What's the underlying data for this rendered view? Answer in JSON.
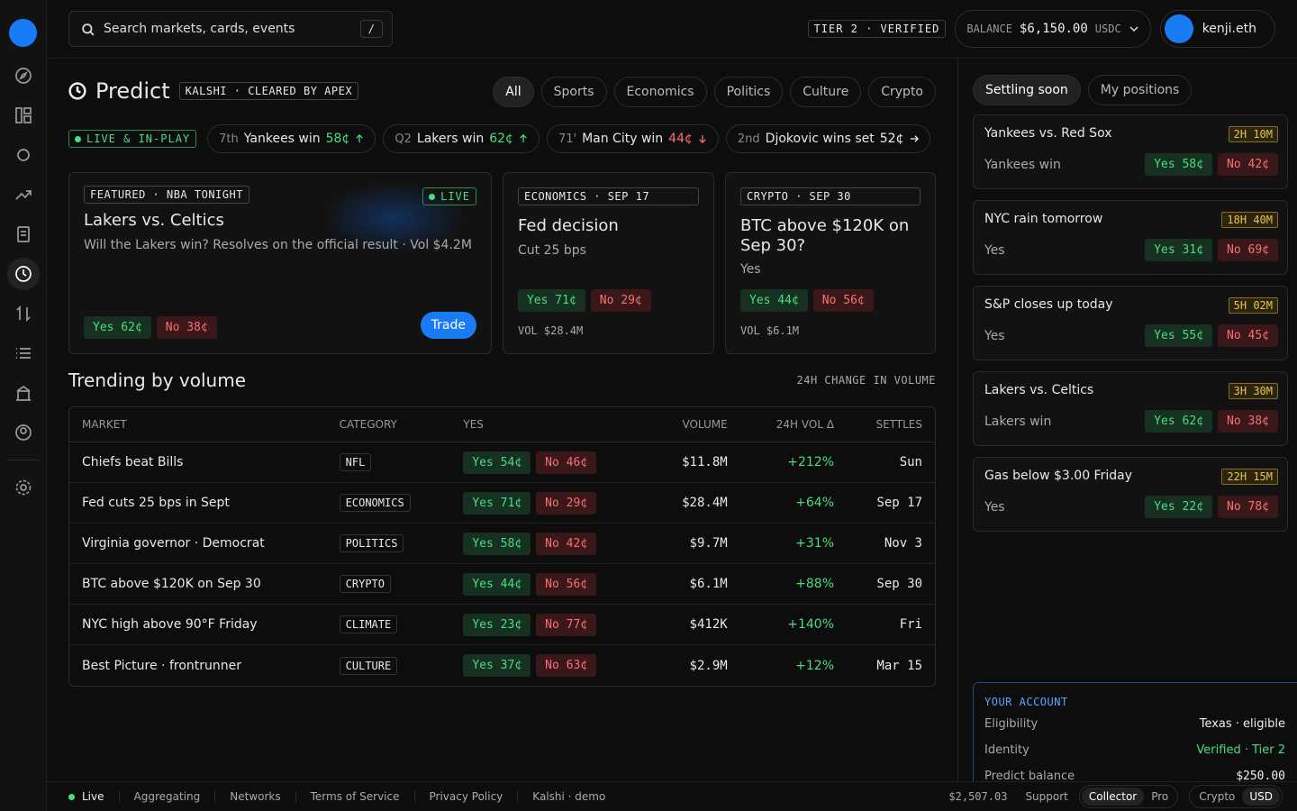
{
  "header": {
    "search_placeholder": "Search markets, cards, events",
    "shortcut": "/",
    "tier": "TIER 2 · VERIFIED",
    "balance_label": "BALANCE",
    "balance": "$6,150.00",
    "balance_unit": "USDC",
    "user": "kenji.eth"
  },
  "page": {
    "title": "Predict",
    "badge": "KALSHI · CLEARED BY APEX",
    "filters": [
      "All",
      "Sports",
      "Economics",
      "Politics",
      "Culture",
      "Crypto"
    ]
  },
  "ticker": {
    "live": "LIVE & IN-PLAY",
    "items": [
      {
        "time": "7th",
        "label": "Yankees win",
        "price": "58¢",
        "trend": "up"
      },
      {
        "time": "Q2",
        "label": "Lakers win",
        "price": "62¢",
        "trend": "up"
      },
      {
        "time": "71'",
        "label": "Man City win",
        "price": "44¢",
        "trend": "down"
      },
      {
        "time": "2nd",
        "label": "Djokovic wins set",
        "price": "52¢",
        "trend": "flat"
      }
    ]
  },
  "cards": [
    {
      "tag": "FEATURED · NBA TONIGHT",
      "live": "LIVE",
      "title": "Lakers vs. Celtics",
      "desc": "Will the Lakers win? Resolves on the official result · Vol $4.2M",
      "yes": "Yes 62¢",
      "no": "No 38¢",
      "button": "Trade"
    },
    {
      "tag": "ECONOMICS · SEP 17",
      "title": "Fed decision",
      "desc": "Cut 25 bps",
      "yes": "Yes 71¢",
      "no": "No 29¢",
      "vol": "VOL $28.4M"
    },
    {
      "tag": "CRYPTO · SEP 30",
      "title": "BTC above $120K on Sep 30?",
      "desc": "Yes",
      "yes": "Yes 44¢",
      "no": "No 56¢",
      "vol": "VOL $6.1M"
    }
  ],
  "trending": {
    "title": "Trending by volume",
    "note": "24H CHANGE IN VOLUME",
    "columns": [
      "MARKET",
      "CATEGORY",
      "YES",
      "VOLUME",
      "24H VOL Δ",
      "SETTLES"
    ],
    "rows": [
      [
        "Chiefs beat Bills",
        "NFL",
        "Yes 54¢",
        "No 46¢",
        "$11.8M",
        "+212%",
        "Sun"
      ],
      [
        "Fed cuts 25 bps in Sept",
        "ECONOMICS",
        "Yes 71¢",
        "No 29¢",
        "$28.4M",
        "+64%",
        "Sep 17"
      ],
      [
        "Virginia governor · Democrat",
        "POLITICS",
        "Yes 58¢",
        "No 42¢",
        "$9.7M",
        "+31%",
        "Nov 3"
      ],
      [
        "BTC above $120K on Sep 30",
        "CRYPTO",
        "Yes 44¢",
        "No 56¢",
        "$6.1M",
        "+88%",
        "Sep 30"
      ],
      [
        "NYC high above 90°F Friday",
        "CLIMATE",
        "Yes 23¢",
        "No 77¢",
        "$412K",
        "+140%",
        "Fri"
      ],
      [
        "Best Picture · frontrunner",
        "CULTURE",
        "Yes 37¢",
        "No 63¢",
        "$2.9M",
        "+12%",
        "Mar 15"
      ]
    ]
  },
  "side": {
    "tabs": [
      "Settling soon",
      "My positions"
    ],
    "items": [
      {
        "title": "Yankees vs. Red Sox",
        "time": "2H 10M",
        "outcome": "Yankees win",
        "yes": "Yes 58¢",
        "no": "No 42¢"
      },
      {
        "title": "NYC rain tomorrow",
        "time": "18H 40M",
        "outcome": "Yes",
        "yes": "Yes 31¢",
        "no": "No 69¢"
      },
      {
        "title": "S&P closes up today",
        "time": "5H 02M",
        "outcome": "Yes",
        "yes": "Yes 55¢",
        "no": "No 45¢"
      },
      {
        "title": "Lakers vs. Celtics",
        "time": "3H 30M",
        "outcome": "Lakers win",
        "yes": "Yes 62¢",
        "no": "No 38¢"
      },
      {
        "title": "Gas below $3.00 Friday",
        "time": "22H 15M",
        "outcome": "Yes",
        "yes": "Yes 22¢",
        "no": "No 78¢"
      }
    ],
    "account": {
      "title": "YOUR ACCOUNT",
      "rows": [
        [
          "Eligibility",
          "Texas · eligible"
        ],
        [
          "Identity",
          "Verified · Tier 2"
        ],
        [
          "Predict balance",
          "$250.00"
        ]
      ]
    }
  },
  "footer": {
    "status": "Live",
    "links": [
      "Aggregating",
      "Networks",
      "Terms of Service",
      "Privacy Policy",
      "Kalshi · demo"
    ],
    "amount": "$2,507.03",
    "support": "Support",
    "mode": [
      "Collector",
      "Pro"
    ],
    "currency": [
      "Crypto",
      "USD"
    ]
  }
}
